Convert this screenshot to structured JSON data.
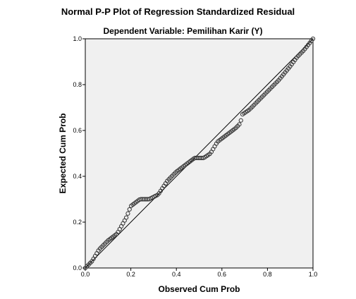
{
  "chart_data": {
    "type": "scatter",
    "title": "Normal P-P Plot of Regression Standardized Residual",
    "subtitle": "Dependent Variable: Pemilihan Karir (Y)",
    "xlabel": "Observed Cum Prob",
    "ylabel": "Expected Cum Prob",
    "xlim": [
      0.0,
      1.0
    ],
    "ylim": [
      0.0,
      1.0
    ],
    "xticks": [
      "0.0",
      "0.2",
      "0.4",
      "0.6",
      "0.8",
      "1.0"
    ],
    "yticks": [
      "0.0",
      "0.2",
      "0.4",
      "0.6",
      "0.8",
      "1.0"
    ],
    "reference_line": {
      "from": [
        0,
        0
      ],
      "to": [
        1,
        1
      ]
    },
    "plot_background": "#f0f0f0",
    "marker_color": "#333333",
    "curve_points": [
      [
        0.0,
        0.0
      ],
      [
        0.03,
        0.03
      ],
      [
        0.06,
        0.08
      ],
      [
        0.1,
        0.12
      ],
      [
        0.14,
        0.15
      ],
      [
        0.18,
        0.22
      ],
      [
        0.2,
        0.27
      ],
      [
        0.24,
        0.3
      ],
      [
        0.28,
        0.3
      ],
      [
        0.32,
        0.32
      ],
      [
        0.36,
        0.38
      ],
      [
        0.4,
        0.42
      ],
      [
        0.44,
        0.45
      ],
      [
        0.48,
        0.48
      ],
      [
        0.52,
        0.48
      ],
      [
        0.55,
        0.5
      ],
      [
        0.58,
        0.55
      ],
      [
        0.62,
        0.58
      ],
      [
        0.66,
        0.61
      ],
      [
        0.68,
        0.63
      ],
      [
        0.69,
        0.67
      ],
      [
        0.72,
        0.69
      ],
      [
        0.75,
        0.72
      ],
      [
        0.8,
        0.77
      ],
      [
        0.85,
        0.82
      ],
      [
        0.9,
        0.88
      ],
      [
        0.93,
        0.92
      ],
      [
        0.96,
        0.95
      ],
      [
        1.0,
        1.0
      ]
    ],
    "point_count": 140
  }
}
